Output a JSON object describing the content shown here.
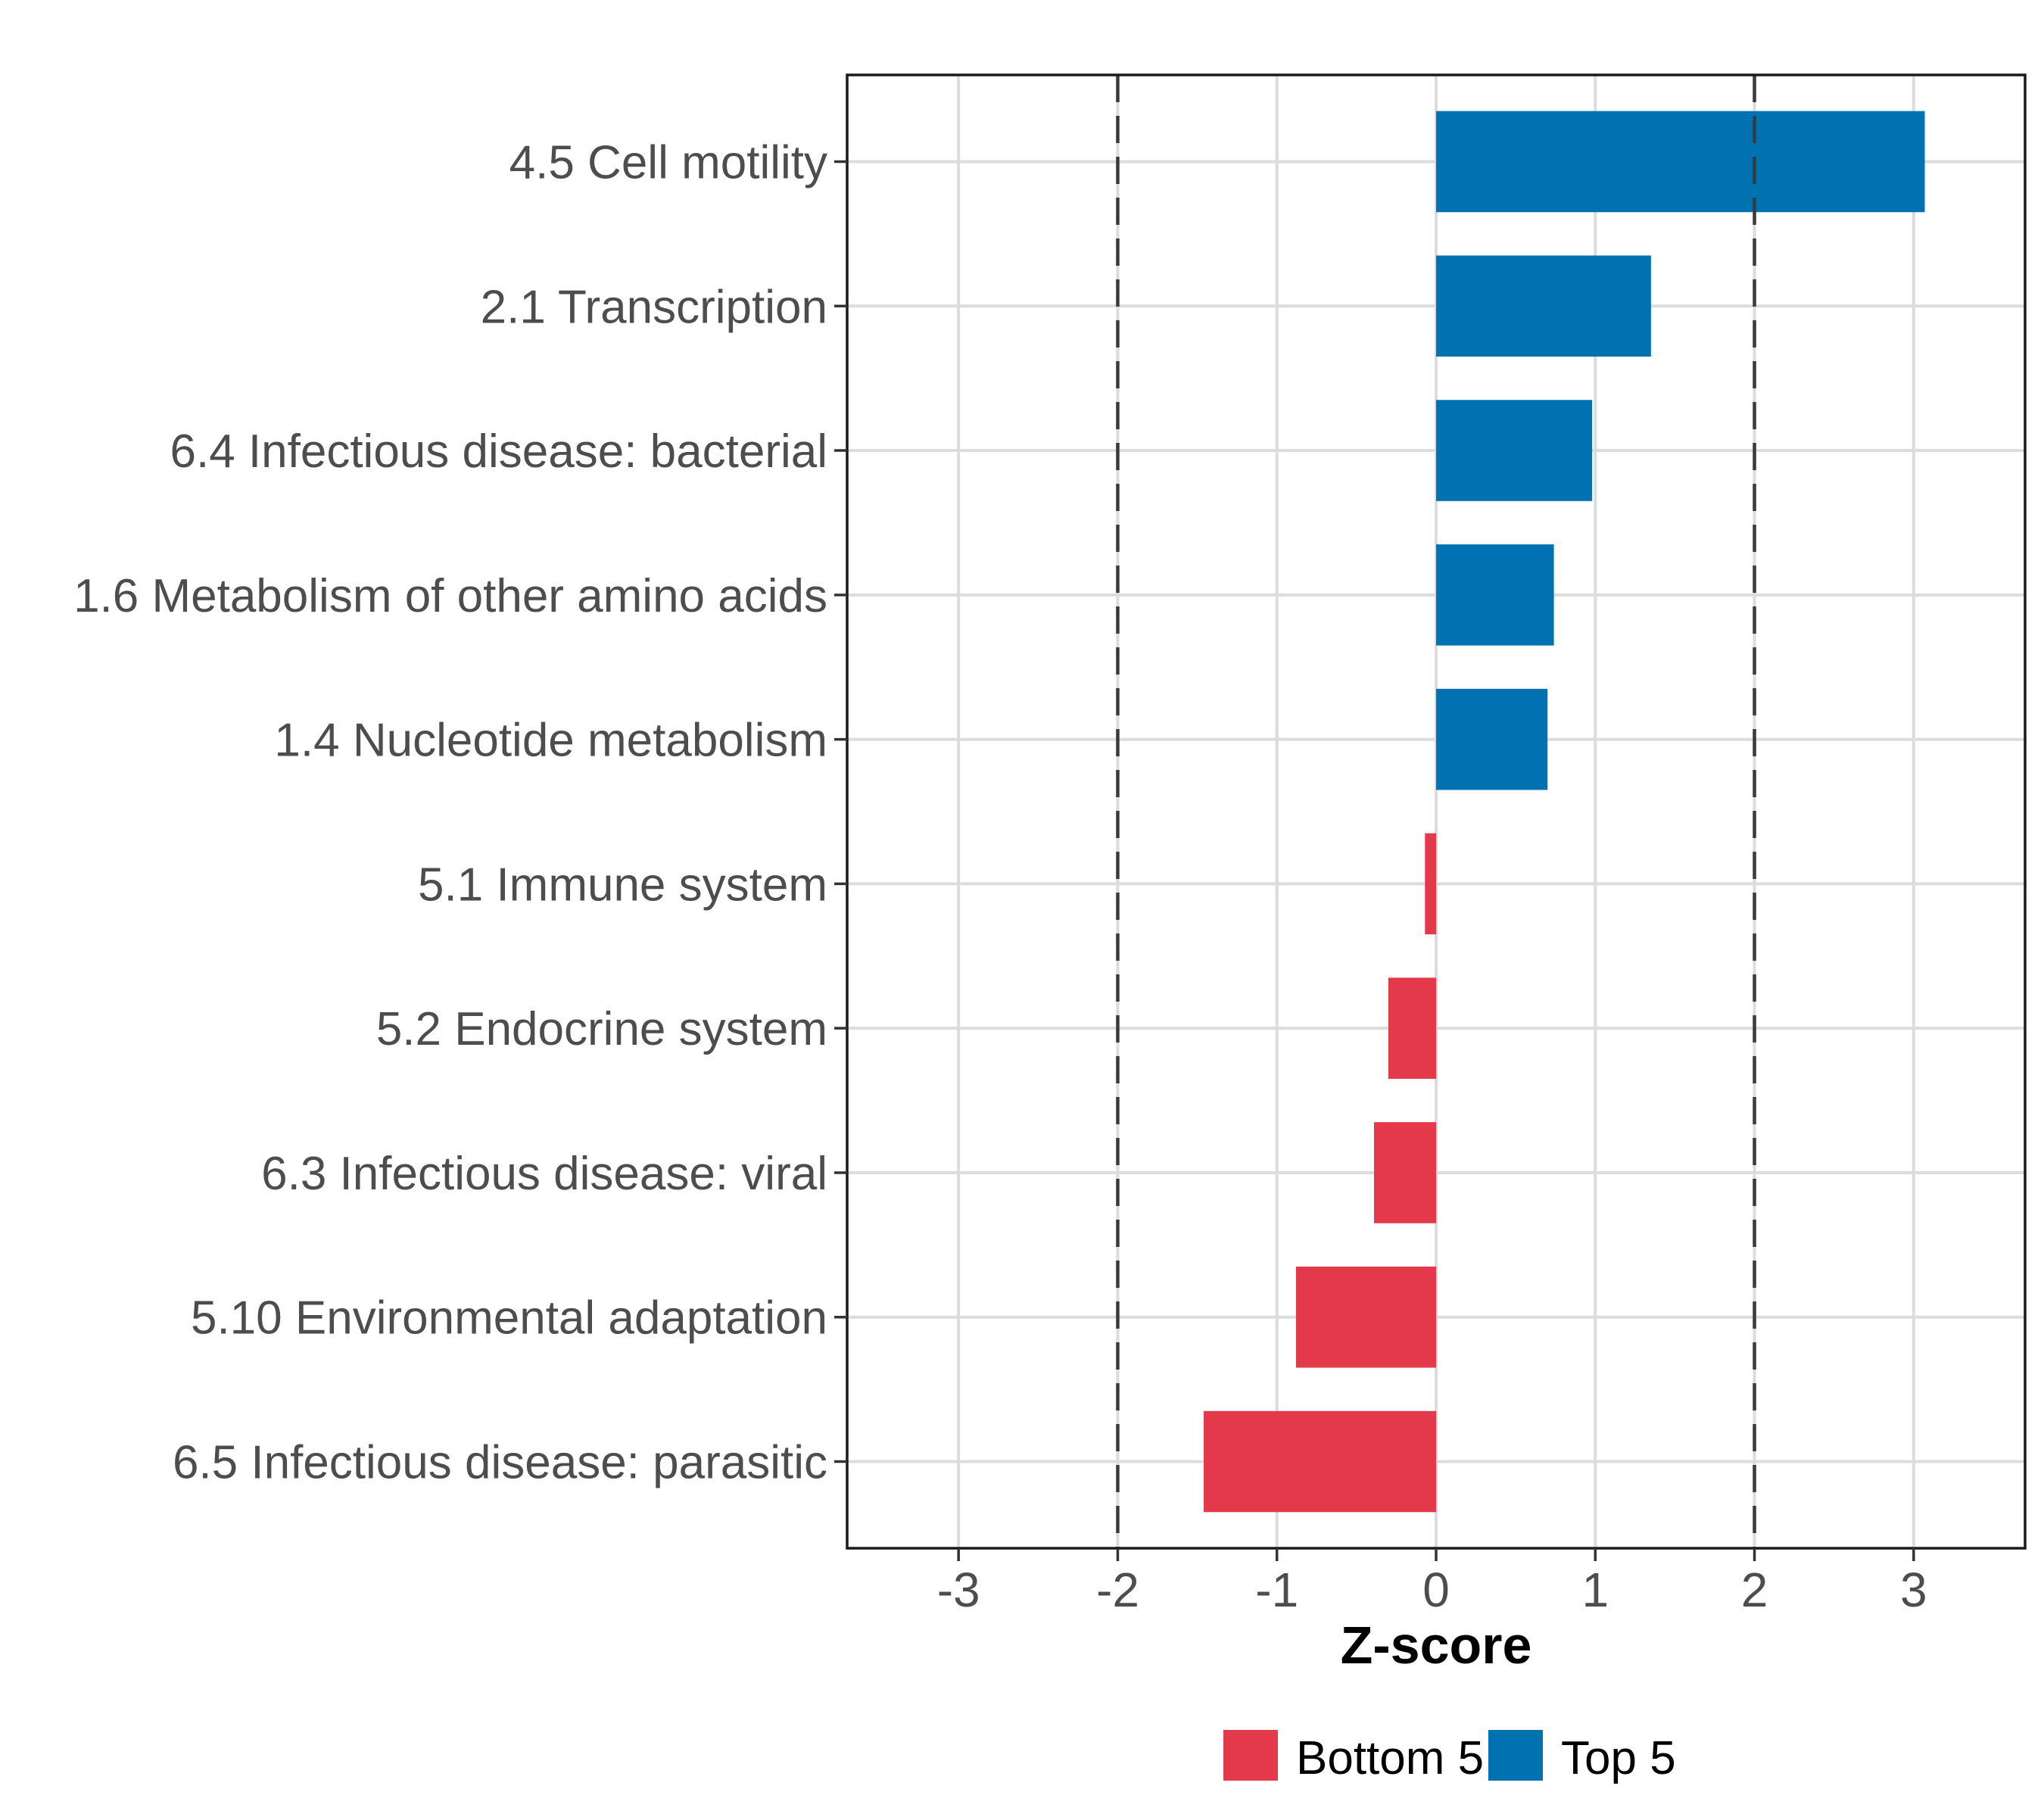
{
  "chart_data": {
    "type": "bar",
    "orientation": "horizontal",
    "title": "",
    "xlabel": "Z-score",
    "ylabel": "",
    "categories": [
      "4.5 Cell motility",
      "2.1 Transcription",
      "6.4 Infectious disease: bacterial",
      "1.6 Metabolism of other amino acids",
      "1.4 Nucleotide metabolism",
      "5.1 Immune system",
      "5.2 Endocrine system",
      "6.3 Infectious disease: viral",
      "5.10 Environmental adaptation",
      "6.5 Infectious disease: parasitic"
    ],
    "values": [
      3.07,
      1.35,
      0.98,
      0.74,
      0.7,
      -0.07,
      -0.3,
      -0.39,
      -0.88,
      -1.46
    ],
    "bar_groups": [
      "Top 5",
      "Top 5",
      "Top 5",
      "Top 5",
      "Top 5",
      "Bottom 5",
      "Bottom 5",
      "Bottom 5",
      "Bottom 5",
      "Bottom 5"
    ],
    "legend": [
      {
        "label": "Bottom 5",
        "color": "#E4394B"
      },
      {
        "label": "Top 5",
        "color": "#0072B2"
      }
    ],
    "legend_position": "bottom",
    "x_ticks": [
      -3,
      -2,
      -1,
      0,
      1,
      2,
      3
    ],
    "x_tick_labels": [
      "-3",
      "-2",
      "-1",
      "0",
      "1",
      "2",
      "3"
    ],
    "xlim": [
      -3.7,
      3.7
    ],
    "reference_lines": [
      -2,
      2
    ],
    "reference_line_style": "dashed",
    "grid": true,
    "colors": {
      "top5": "#0072B2",
      "bottom5": "#E4394B",
      "grid": "#DCDCDC",
      "axis_text": "#4D4D4D",
      "axis_line": "#1A1A1A",
      "tick_mark": "#333333",
      "reference_line": "#3A3A3A",
      "title_text": "#000000",
      "background": "#FFFFFF"
    }
  }
}
